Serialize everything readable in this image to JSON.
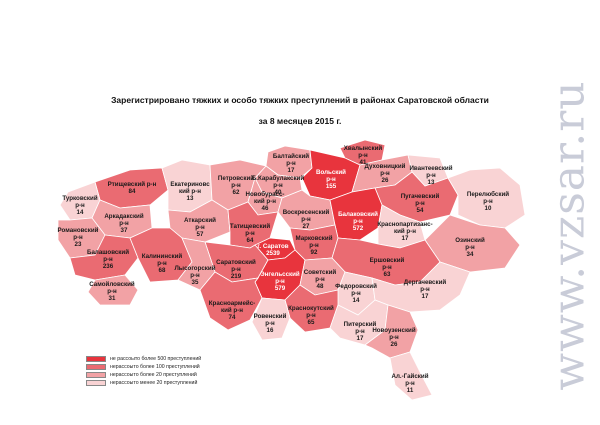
{
  "title": {
    "line1": "Зарегистрировано тяжких и особо тяжких преступлений в районах Саратовской области",
    "line2": "за 8 месяцев 2015 г."
  },
  "colors": {
    "c1": "#e8343d",
    "c2": "#ea6b72",
    "c3": "#f2a2a5",
    "c4": "#f9d3d4",
    "border": "#ffffff"
  },
  "legend": [
    {
      "label": "не рассоыто более 500 преступлений",
      "color": "#e8343d"
    },
    {
      "label": "нерассоыто более 100 преступлений",
      "color": "#ea6b72"
    },
    {
      "label": "нерассоыто более 20 преступлений",
      "color": "#f2a2a5"
    },
    {
      "label": "нерассоыто менее 20 преступлений",
      "color": "#f9d3d4"
    }
  ],
  "districts": [
    {
      "id": "hvalynsky",
      "lines": [
        "Хвалынский",
        "р-н",
        "41"
      ],
      "level": "c2"
    },
    {
      "id": "baltaysky",
      "lines": [
        "Балтайский",
        "р-н",
        "17"
      ],
      "level": "c3"
    },
    {
      "id": "volsky",
      "lines": [
        "Вольский",
        "р-н",
        "155"
      ],
      "level": "c1"
    },
    {
      "id": "duhovnitsky",
      "lines": [
        "Духовницкий",
        "р-н",
        "26"
      ],
      "level": "c3"
    },
    {
      "id": "ivanteevsky",
      "lines": [
        "Ивантеевский",
        "р-н",
        "13"
      ],
      "level": "c4"
    },
    {
      "id": "bkarabulaksky",
      "lines": [
        "Б.Карабулакский",
        "р-н",
        "40"
      ],
      "level": "c3"
    },
    {
      "id": "rtishevsky",
      "lines": [
        "Ртищевский р-н",
        "84"
      ],
      "level": "c2"
    },
    {
      "id": "ekaterinovsky",
      "lines": [
        "Екатериновс",
        "кий р-н",
        "13"
      ],
      "level": "c4"
    },
    {
      "id": "petrovsky",
      "lines": [
        "Петровский",
        "р-н",
        "62"
      ],
      "level": "c3"
    },
    {
      "id": "novoburassky",
      "lines": [
        "Новобурасс-",
        "кий р-н",
        "46"
      ],
      "level": "c3"
    },
    {
      "id": "pugachevsky",
      "lines": [
        "Пугачевский",
        "р-н",
        "54"
      ],
      "level": "c2"
    },
    {
      "id": "perelyubsky",
      "lines": [
        "Перелюбский",
        "р-н",
        "10"
      ],
      "level": "c4"
    },
    {
      "id": "turkovsky",
      "lines": [
        "Турковский",
        "р-н",
        "14"
      ],
      "level": "c4"
    },
    {
      "id": "arkadaksky",
      "lines": [
        "Аркадакский",
        "р-н",
        "37"
      ],
      "level": "c3"
    },
    {
      "id": "atkarsky",
      "lines": [
        "Аткарский",
        "р-н",
        "57"
      ],
      "level": "c3"
    },
    {
      "id": "voskresensky",
      "lines": [
        "Воскресенский",
        "р-н",
        "27"
      ],
      "level": "c3"
    },
    {
      "id": "balakovsky",
      "lines": [
        "Балаковский",
        "р-н",
        "572"
      ],
      "level": "c1"
    },
    {
      "id": "krasnopartizansky",
      "lines": [
        "Краснопартизанс-",
        "кий р-н",
        "17"
      ],
      "level": "c4"
    },
    {
      "id": "romanovsky",
      "lines": [
        "Романовский",
        "р-н",
        "23"
      ],
      "level": "c3"
    },
    {
      "id": "tatishevsky",
      "lines": [
        "Татищевский",
        "р-н",
        "64"
      ],
      "level": "c2"
    },
    {
      "id": "markovsky",
      "lines": [
        "Марковский",
        "р-н",
        "92"
      ],
      "level": "c2"
    },
    {
      "id": "ozinsky",
      "lines": [
        "Озинский",
        "р-н",
        "34"
      ],
      "level": "c3"
    },
    {
      "id": "balashovsky",
      "lines": [
        "Балашовский",
        "р-н",
        "236"
      ],
      "level": "c2"
    },
    {
      "id": "saratov",
      "lines": [
        "г. Саратов",
        "2539"
      ],
      "level": "c1"
    },
    {
      "id": "ershovsky",
      "lines": [
        "Ершовский",
        "р-н",
        "63"
      ],
      "level": "c2"
    },
    {
      "id": "samoylovsky",
      "lines": [
        "Самойловский",
        "р-н",
        "31"
      ],
      "level": "c3"
    },
    {
      "id": "kalininsky",
      "lines": [
        "Калининский",
        "р-н",
        "68"
      ],
      "level": "c2"
    },
    {
      "id": "saratovsky",
      "lines": [
        "Саратовский",
        "р-н",
        "219"
      ],
      "level": "c2"
    },
    {
      "id": "engelssky",
      "lines": [
        "Энгельсский",
        "р-н",
        "579"
      ],
      "level": "c1"
    },
    {
      "id": "sovetsky",
      "lines": [
        "Советский",
        "р-н",
        "48"
      ],
      "level": "c3"
    },
    {
      "id": "fedorovsky",
      "lines": [
        "Федоровский",
        "р-н",
        "14"
      ],
      "level": "c4"
    },
    {
      "id": "dergachevsky",
      "lines": [
        "Дергачевский",
        "р-н",
        "17"
      ],
      "level": "c4"
    },
    {
      "id": "lysogorsky",
      "lines": [
        "Лысогорский",
        "р-н",
        "35"
      ],
      "level": "c3"
    },
    {
      "id": "krasnoarmeysky",
      "lines": [
        "Красноармейс-",
        "кий р-н",
        "74"
      ],
      "level": "c2"
    },
    {
      "id": "krasnokutsky",
      "lines": [
        "Краснокутский",
        "р-н",
        "65"
      ],
      "level": "c2"
    },
    {
      "id": "rovensky",
      "lines": [
        "Ровенский",
        "р-н",
        "16"
      ],
      "level": "c4"
    },
    {
      "id": "pitersky",
      "lines": [
        "Питерский",
        "р-н",
        "17"
      ],
      "level": "c4"
    },
    {
      "id": "novouzensky",
      "lines": [
        "Новоузенский",
        "р-н",
        "26"
      ],
      "level": "c3"
    },
    {
      "id": "algaysky",
      "lines": [
        "Ал.-Гайский",
        "р-н",
        "11"
      ],
      "level": "c4"
    }
  ],
  "watermark": "www.vzsar.ru"
}
